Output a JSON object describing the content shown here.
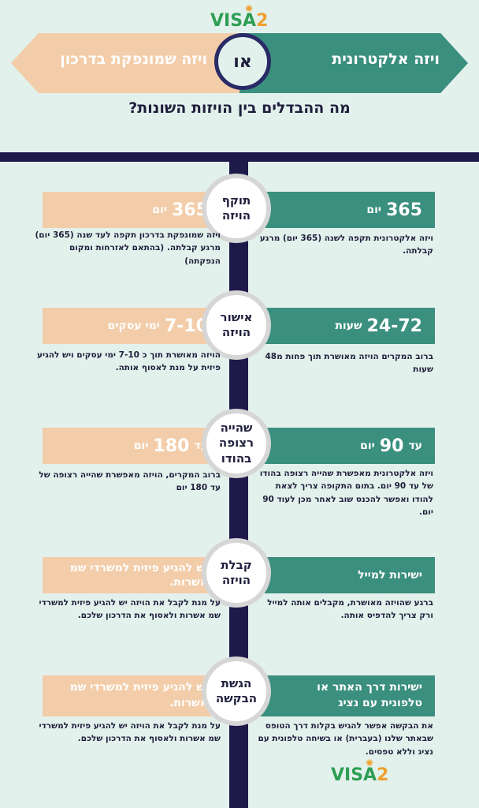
{
  "logo": {
    "visa": "VISA",
    "num": "2"
  },
  "header": {
    "right_label": "ויזה אלקטרונית",
    "left_label": "ויזה שמונפקת בדרכון",
    "or": "או",
    "question": "מה ההבדלים בין הויזות השונות?"
  },
  "rows": [
    {
      "center": "תוקף הויזה",
      "right_big": "365",
      "right_small": "יום",
      "right_desc": "ויזה אלקטרונית תקפה לשנה (365 יום) מרגע קבלתה.",
      "left_big": "365",
      "left_small": "יום",
      "left_desc": "ויזה שמונפקת בדרכון תקפה לעד שנה (365 יום) מרגע קבלתה. (בהתאם לאזרחות ומקום הנפקתה)"
    },
    {
      "center": "אישור הויזה",
      "right_big": "24-72",
      "right_small": "שעות",
      "right_desc": "ברוב המקרים הויזה מאושרת תוך פחות מ48 שעות",
      "left_big": "7-10",
      "left_small": "ימי עסקים",
      "left_desc": "הויזה מאושרת תוך כ 7-10 ימי עסקים ויש להגיע פיזית על מנת לאסוף אותה."
    },
    {
      "center": "שהייה רצופה בהודו",
      "right_big": "90",
      "right_small": "עד",
      "right_small2": "יום",
      "right_desc": "ויזה אלקטרונית מאפשרת שהייה רצופה בהודו של עד 90 יום. בתום התקופה צריך לצאת להודו ואפשר להכנס שוב לאחר מכן לעוד 90 יום.",
      "left_big": "180",
      "left_small": "עד",
      "left_small2": "יום",
      "left_desc": "ברוב המקרים, הויזה מאפשרת שהייה רצופה של עד 180 יום"
    },
    {
      "center": "קבלת הויזה",
      "right_label": "ישירות למייל",
      "right_desc": "ברגע שהויזה מאושרת, מקבלים אותה למייל ורק צריך להדפיס אותה.",
      "left_label": "יש להגיע פיזית למשרדי שמ אשרות.",
      "left_desc": "על מנת לקבל את הויזה יש להגיע פיזית למשרדי שמ אשרות ולאסוף את הדרכון שלכם."
    },
    {
      "center": "הגשת הבקשה",
      "right_label": "ישירות דרך האתר או טלפונית עם נציג",
      "right_desc": "את הבקשה אפשר להגיש בקלות דרך הטופס שבאתר שלנו (בעברית) או בשיחה טלפונית עם נציג וללא טפסים.",
      "left_label": "יש להגיע פיזית למשרדי שמ אשרות.",
      "left_desc": "על מנת לקבל את הויזה יש להגיע פיזית למשרדי שמ אשרות ולאסוף את הדרכון שלכם."
    }
  ]
}
